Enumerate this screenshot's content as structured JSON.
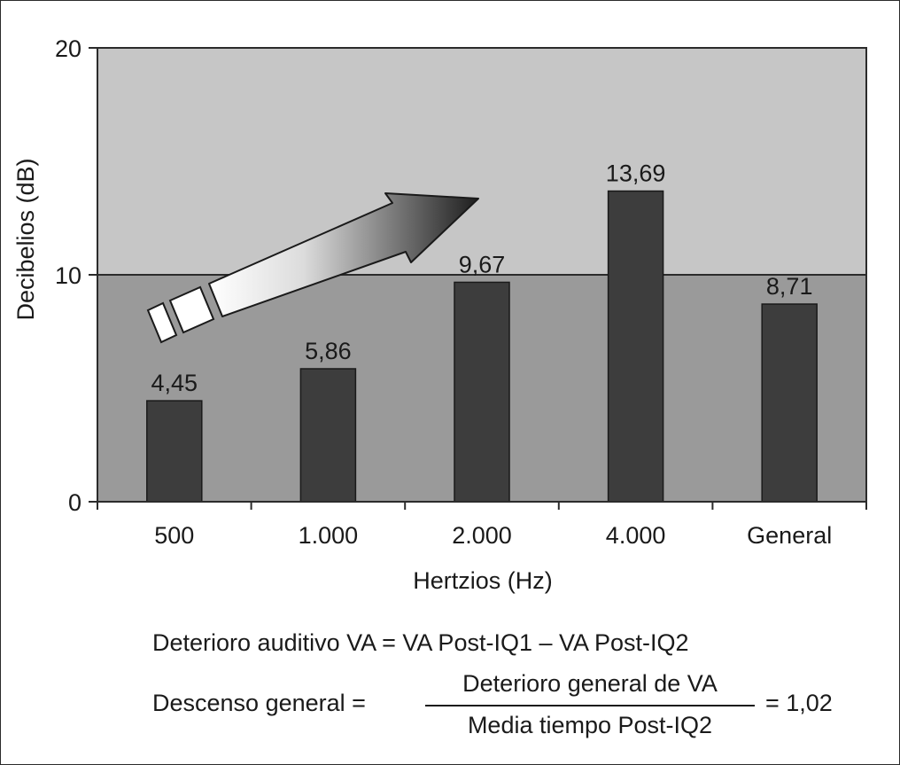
{
  "chart_data": {
    "type": "bar",
    "title": "",
    "xlabel": "Hertzios (Hz)",
    "ylabel": "Decibelios (dB)",
    "ylim": [
      0,
      20
    ],
    "yticks": [
      "0",
      "10",
      "20"
    ],
    "yticks_values": [
      0,
      10,
      20
    ],
    "categories": [
      "500",
      "1.000",
      "2.000",
      "4.000",
      "General"
    ],
    "values": [
      4.45,
      5.86,
      9.67,
      13.69,
      8.71
    ],
    "value_labels": [
      "4,45",
      "5,86",
      "9,67",
      "13,69",
      "8,71"
    ],
    "background_bands": [
      {
        "from": 0,
        "to": 10,
        "color": "#9a9a9a"
      },
      {
        "from": 10,
        "to": 20,
        "color": "#c6c6c6"
      }
    ],
    "bar_color": "#3d3d3d",
    "grid": false,
    "legend": "none"
  },
  "formulas": {
    "line1": "Deterioro auditivo VA = VA Post-IQ1 – VA Post-IQ2",
    "line2_left": "Descenso general =",
    "line2_numerator": "Deterioro general de VA",
    "line2_denominator": "Media tiempo Post-IQ2",
    "line2_right": "= 1,02"
  }
}
